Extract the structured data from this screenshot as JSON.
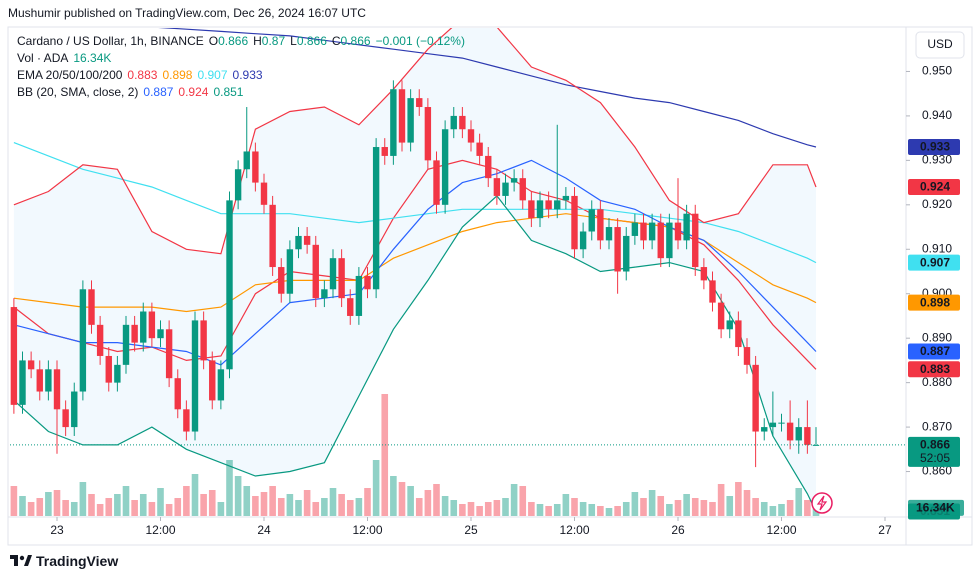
{
  "header": {
    "publisher": "Mushumir published on TradingView.com, Dec 26, 2024 16:07 UTC",
    "currency": "USD"
  },
  "footer": {
    "logo": "TradingView"
  },
  "chart_data": {
    "type": "candlestick",
    "title": "Cardano / US Dollar, 1h, BINANCE",
    "ohlc_labels": [
      "O",
      "H",
      "L",
      "C"
    ],
    "change_label": "−0.001 (−0.12%)",
    "countdown": "52:05",
    "up_color": "#089981",
    "down_color": "#f23645",
    "x": [
      -5,
      -4,
      -3,
      -2,
      -1,
      0,
      1,
      2,
      3,
      4,
      5,
      6,
      7,
      8,
      9,
      10,
      11,
      12,
      13,
      14,
      15,
      16,
      17,
      18,
      19,
      20,
      21,
      22,
      23,
      24,
      25,
      26,
      27,
      28,
      29,
      30,
      31,
      32,
      33,
      34,
      35,
      36,
      37,
      38,
      39,
      40,
      41,
      42,
      43,
      44,
      45,
      46,
      47,
      48,
      49,
      50,
      51,
      52,
      53,
      54,
      55,
      56,
      57,
      58,
      59,
      60,
      61,
      62,
      63,
      64,
      65,
      66,
      67,
      68,
      69,
      70,
      71,
      72,
      73,
      74,
      75,
      76,
      77,
      78,
      79,
      80,
      81,
      82,
      83,
      84,
      85,
      86,
      87,
      88
    ],
    "open": [
      0.897,
      0.875,
      0.885,
      0.883,
      0.878,
      0.883,
      0.874,
      0.87,
      0.878,
      0.901,
      0.893,
      0.886,
      0.88,
      0.884,
      0.893,
      0.889,
      0.896,
      0.89,
      0.892,
      0.881,
      0.874,
      0.869,
      0.894,
      0.885,
      0.876,
      0.883,
      0.921,
      0.928,
      0.932,
      0.925,
      0.92,
      0.906,
      0.9,
      0.91,
      0.913,
      0.911,
      0.899,
      0.901,
      0.908,
      0.899,
      0.895,
      0.904,
      0.901,
      0.933,
      0.931,
      0.946,
      0.934,
      0.944,
      0.942,
      0.93,
      0.92,
      0.937,
      0.94,
      0.937,
      0.934,
      0.931,
      0.926,
      0.922,
      0.925,
      0.926,
      0.921,
      0.917,
      0.921,
      0.919,
      0.921,
      0.922,
      0.91,
      0.914,
      0.919,
      0.912,
      0.915,
      0.905,
      0.913,
      0.916,
      0.912,
      0.916,
      0.908,
      0.916,
      0.912,
      0.918,
      0.906,
      0.903,
      0.898,
      0.892,
      0.894,
      0.888,
      0.884,
      0.869,
      0.87,
      0.871,
      0.871,
      0.867,
      0.87,
      0.866
    ],
    "high": [
      0.899,
      0.887,
      0.887,
      0.885,
      0.885,
      0.885,
      0.876,
      0.88,
      0.903,
      0.903,
      0.895,
      0.888,
      0.886,
      0.895,
      0.895,
      0.898,
      0.898,
      0.894,
      0.894,
      0.883,
      0.876,
      0.896,
      0.896,
      0.887,
      0.885,
      0.923,
      0.93,
      0.942,
      0.934,
      0.927,
      0.922,
      0.908,
      0.912,
      0.915,
      0.915,
      0.913,
      0.903,
      0.91,
      0.91,
      0.901,
      0.906,
      0.906,
      0.935,
      0.935,
      0.948,
      0.948,
      0.946,
      0.946,
      0.944,
      0.932,
      0.939,
      0.942,
      0.942,
      0.939,
      0.936,
      0.933,
      0.928,
      0.927,
      0.928,
      0.928,
      0.923,
      0.923,
      0.923,
      0.938,
      0.924,
      0.924,
      0.916,
      0.921,
      0.921,
      0.917,
      0.917,
      0.915,
      0.918,
      0.918,
      0.918,
      0.918,
      0.918,
      0.926,
      0.92,
      0.92,
      0.908,
      0.905,
      0.9,
      0.896,
      0.896,
      0.89,
      0.886,
      0.872,
      0.878,
      0.873,
      0.876,
      0.872,
      0.876,
      0.87
    ],
    "low": [
      0.873,
      0.873,
      0.881,
      0.876,
      0.876,
      0.864,
      0.868,
      0.868,
      0.876,
      0.891,
      0.884,
      0.878,
      0.878,
      0.882,
      0.887,
      0.887,
      0.888,
      0.888,
      0.879,
      0.872,
      0.867,
      0.867,
      0.883,
      0.874,
      0.874,
      0.881,
      0.919,
      0.926,
      0.923,
      0.918,
      0.904,
      0.898,
      0.898,
      0.908,
      0.909,
      0.897,
      0.897,
      0.899,
      0.897,
      0.893,
      0.893,
      0.899,
      0.899,
      0.929,
      0.929,
      0.932,
      0.932,
      0.94,
      0.928,
      0.918,
      0.918,
      0.935,
      0.935,
      0.932,
      0.929,
      0.924,
      0.92,
      0.92,
      0.923,
      0.919,
      0.915,
      0.915,
      0.917,
      0.917,
      0.919,
      0.908,
      0.908,
      0.912,
      0.91,
      0.91,
      0.9,
      0.903,
      0.911,
      0.91,
      0.91,
      0.906,
      0.906,
      0.91,
      0.91,
      0.904,
      0.901,
      0.896,
      0.89,
      0.89,
      0.886,
      0.882,
      0.861,
      0.867,
      0.868,
      0.869,
      0.865,
      0.864,
      0.864,
      0.866
    ],
    "close": [
      0.875,
      0.885,
      0.883,
      0.878,
      0.883,
      0.874,
      0.87,
      0.878,
      0.901,
      0.893,
      0.886,
      0.88,
      0.884,
      0.893,
      0.889,
      0.896,
      0.89,
      0.892,
      0.881,
      0.874,
      0.869,
      0.894,
      0.885,
      0.876,
      0.883,
      0.921,
      0.928,
      0.932,
      0.925,
      0.92,
      0.906,
      0.9,
      0.91,
      0.913,
      0.911,
      0.899,
      0.901,
      0.908,
      0.899,
      0.895,
      0.904,
      0.901,
      0.933,
      0.931,
      0.946,
      0.934,
      0.944,
      0.942,
      0.93,
      0.92,
      0.937,
      0.94,
      0.937,
      0.934,
      0.931,
      0.926,
      0.922,
      0.925,
      0.926,
      0.921,
      0.917,
      0.921,
      0.919,
      0.921,
      0.922,
      0.91,
      0.914,
      0.919,
      0.912,
      0.915,
      0.905,
      0.913,
      0.916,
      0.912,
      0.916,
      0.908,
      0.916,
      0.912,
      0.918,
      0.906,
      0.903,
      0.898,
      0.892,
      0.894,
      0.888,
      0.884,
      0.869,
      0.87,
      0.871,
      0.871,
      0.867,
      0.87,
      0.866,
      0.866
    ],
    "volume": {
      "name": "Vol · ADA",
      "current_label": "16.34K",
      "ylim": [
        0,
        250000
      ],
      "values": [
        60000,
        40000,
        28000,
        36000,
        48000,
        52000,
        32000,
        28000,
        68000,
        44000,
        24000,
        36000,
        44000,
        60000,
        32000,
        44000,
        28000,
        56000,
        24000,
        36000,
        60000,
        84000,
        44000,
        52000,
        28000,
        112000,
        80000,
        60000,
        40000,
        48000,
        60000,
        36000,
        44000,
        32000,
        52000,
        28000,
        36000,
        56000,
        44000,
        32000,
        36000,
        56000,
        112000,
        244000,
        80000,
        68000,
        60000,
        36000,
        52000,
        64000,
        40000,
        32000,
        24000,
        28000,
        20000,
        28000,
        32000,
        36000,
        64000,
        60000,
        28000,
        24000,
        20000,
        24000,
        44000,
        36000,
        28000,
        24000,
        20000,
        16000,
        20000,
        28000,
        48000,
        36000,
        52000,
        40000,
        24000,
        32000,
        44000,
        36000,
        32000,
        28000,
        64000,
        40000,
        68000,
        52000,
        36000,
        28000,
        20000,
        24000,
        32000,
        56000,
        32000,
        16340
      ]
    },
    "indicator_x": [
      -5,
      -1,
      3,
      7,
      11,
      15,
      19,
      23,
      27,
      31,
      35,
      39,
      43,
      47,
      51,
      55,
      59,
      63,
      67,
      71,
      75,
      79,
      83,
      87,
      88
    ],
    "indicators": [
      {
        "name": "EMA 20/50/100/200",
        "series": [
          {
            "color": "#f23645",
            "values": [
              0.897,
              0.891,
              0.889,
              0.887,
              0.888,
              0.885,
              0.886,
              0.9,
              0.905,
              0.904,
              0.903,
              0.917,
              0.928,
              0.93,
              0.928,
              0.923,
              0.921,
              0.917,
              0.916,
              0.915,
              0.911,
              0.903,
              0.893,
              0.885,
              0.883
            ]
          },
          {
            "color": "#ff9800",
            "values": [
              0.899,
              0.898,
              0.897,
              0.897,
              0.897,
              0.896,
              0.897,
              0.902,
              0.903,
              0.903,
              0.903,
              0.908,
              0.911,
              0.914,
              0.916,
              0.917,
              0.918,
              0.917,
              0.916,
              0.915,
              0.912,
              0.907,
              0.902,
              0.899,
              0.898
            ]
          },
          {
            "color": "#40e0f0",
            "values": [
              0.934,
              0.931,
              0.928,
              0.926,
              0.924,
              0.921,
              0.918,
              0.918,
              0.918,
              0.917,
              0.916,
              0.917,
              0.918,
              0.919,
              0.919,
              0.919,
              0.919,
              0.919,
              0.918,
              0.917,
              0.916,
              0.914,
              0.911,
              0.908,
              0.907
            ]
          },
          {
            "color": "#2d3ab0",
            "values": [
              0.962,
              0.9615,
              0.961,
              0.9605,
              0.96,
              0.9595,
              0.959,
              0.9585,
              0.958,
              0.957,
              0.956,
              0.955,
              0.954,
              0.953,
              0.951,
              0.949,
              0.947,
              0.9455,
              0.944,
              0.943,
              0.941,
              0.939,
              0.936,
              0.9335,
              0.933
            ]
          }
        ]
      },
      {
        "name": "BB (20, SMA, close, 2)",
        "fill": "#2196f3",
        "series": [
          {
            "color": "#2962ff",
            "values": [
              0.893,
              0.891,
              0.889,
              0.889,
              0.888,
              0.887,
              0.884,
              0.891,
              0.898,
              0.899,
              0.9,
              0.91,
              0.919,
              0.925,
              0.927,
              0.93,
              0.926,
              0.921,
              0.919,
              0.915,
              0.912,
              0.905,
              0.897,
              0.889,
              0.887
            ]
          },
          {
            "color": "#f23645",
            "values": [
              0.92,
              0.923,
              0.929,
              0.928,
              0.914,
              0.91,
              0.909,
              0.937,
              0.941,
              0.942,
              0.938,
              0.946,
              0.955,
              0.962,
              0.96,
              0.951,
              0.948,
              0.943,
              0.933,
              0.921,
              0.916,
              0.918,
              0.929,
              0.929,
              0.924
            ]
          },
          {
            "color": "#089981",
            "values": [
              0.876,
              0.869,
              0.866,
              0.866,
              0.87,
              0.865,
              0.862,
              0.859,
              0.86,
              0.862,
              0.877,
              0.892,
              0.903,
              0.915,
              0.922,
              0.912,
              0.909,
              0.905,
              0.906,
              0.907,
              0.905,
              0.892,
              0.868,
              0.855,
              0.851
            ]
          }
        ]
      }
    ],
    "xlim": [
      -5.45,
      98.32
    ],
    "xticks": [
      {
        "value": 0,
        "label": "23"
      },
      {
        "value": 12,
        "label": "12:00"
      },
      {
        "value": 24,
        "label": "24"
      },
      {
        "value": 36,
        "label": "12:00"
      },
      {
        "value": 48,
        "label": "25"
      },
      {
        "value": 60,
        "label": "12:00"
      },
      {
        "value": 72,
        "label": "26"
      },
      {
        "value": 84,
        "label": "12:00"
      },
      {
        "value": 96,
        "label": "27"
      }
    ],
    "ylim": [
      0.85,
      0.96
    ],
    "yticks": [
      {
        "value": 0.86,
        "label": "0.860"
      },
      {
        "value": 0.87,
        "label": "0.870"
      },
      {
        "value": 0.88,
        "label": "0.880"
      },
      {
        "value": 0.89,
        "label": "0.890"
      },
      {
        "value": 0.9,
        "label": "0.900"
      },
      {
        "value": 0.91,
        "label": "0.910"
      },
      {
        "value": 0.92,
        "label": "0.920"
      },
      {
        "value": 0.93,
        "label": "0.930"
      },
      {
        "value": 0.94,
        "label": "0.940"
      },
      {
        "value": 0.95,
        "label": "0.950"
      }
    ],
    "grid": false
  }
}
